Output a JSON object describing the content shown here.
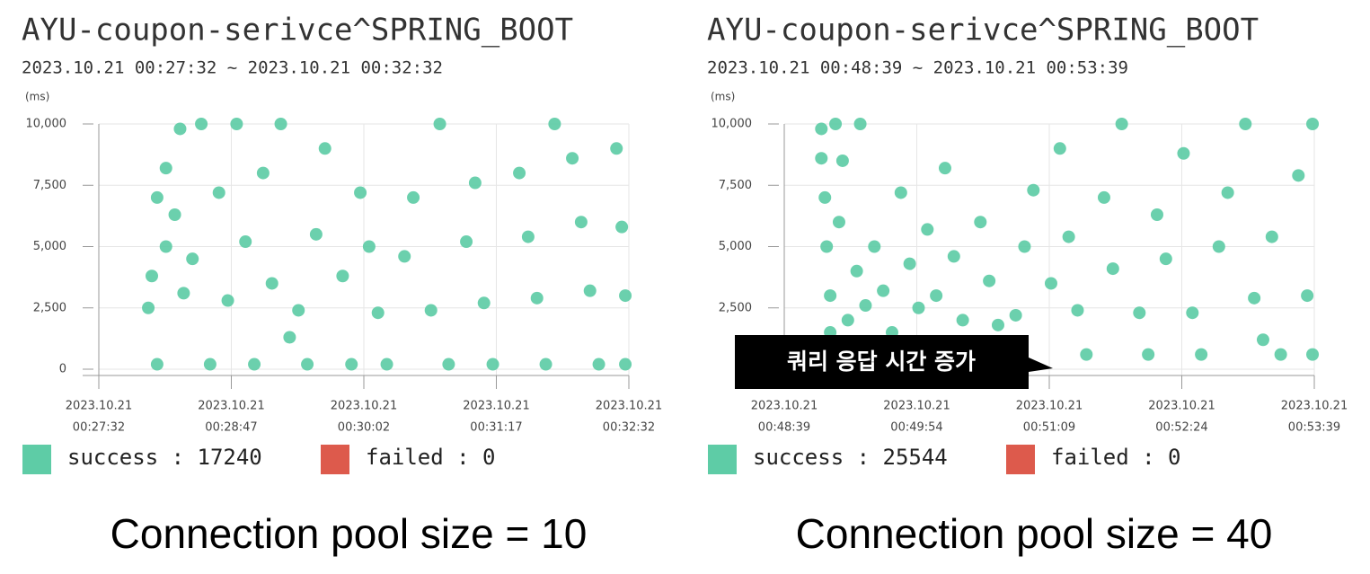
{
  "chart_data": [
    {
      "type": "scatter",
      "title": "AYU-coupon-serivce^SPRING_BOOT",
      "subtitle": "2023.10.21 00:27:32 ~ 2023.10.21 00:32:32",
      "y_label": "(ms)",
      "caption": "Connection pool size = 10",
      "xlim": [
        "2023-10-21T00:27:32",
        "2023-10-21T00:32:32"
      ],
      "xticks": [
        {
          "value": "2023-10-21T00:27:32",
          "label": [
            "2023.10.21",
            "00:27:32"
          ]
        },
        {
          "value": "2023-10-21T00:28:47",
          "label": [
            "2023.10.21",
            "00:28:47"
          ]
        },
        {
          "value": "2023-10-21T00:30:02",
          "label": [
            "2023.10.21",
            "00:30:02"
          ]
        },
        {
          "value": "2023-10-21T00:31:17",
          "label": [
            "2023.10.21",
            "00:31:17"
          ]
        },
        {
          "value": "2023-10-21T00:32:32",
          "label": [
            "2023.10.21",
            "00:32:32"
          ]
        }
      ],
      "ylim": [
        0,
        10000
      ],
      "yticks": [
        0,
        {
          "value": 2500,
          "label": "2,500"
        },
        {
          "value": 5000,
          "label": "5,000"
        },
        {
          "value": 7500,
          "label": "7,500"
        },
        {
          "value": 10000,
          "label": "10,000"
        }
      ],
      "grid": true,
      "x": [
        "2023-10-21T00:28:00",
        "2023-10-21T00:28:02",
        "2023-10-21T00:28:05",
        "2023-10-21T00:28:05",
        "2023-10-21T00:28:10",
        "2023-10-21T00:28:10",
        "2023-10-21T00:28:15",
        "2023-10-21T00:28:18",
        "2023-10-21T00:28:20",
        "2023-10-21T00:28:25",
        "2023-10-21T00:28:30",
        "2023-10-21T00:28:35",
        "2023-10-21T00:28:40",
        "2023-10-21T00:28:45",
        "2023-10-21T00:28:50",
        "2023-10-21T00:28:55",
        "2023-10-21T00:29:00",
        "2023-10-21T00:29:05",
        "2023-10-21T00:29:10",
        "2023-10-21T00:29:15",
        "2023-10-21T00:29:20",
        "2023-10-21T00:29:25",
        "2023-10-21T00:29:30",
        "2023-10-21T00:29:35",
        "2023-10-21T00:29:40",
        "2023-10-21T00:29:50",
        "2023-10-21T00:29:55",
        "2023-10-21T00:30:00",
        "2023-10-21T00:30:05",
        "2023-10-21T00:30:10",
        "2023-10-21T00:30:15",
        "2023-10-21T00:30:25",
        "2023-10-21T00:30:30",
        "2023-10-21T00:30:40",
        "2023-10-21T00:30:45",
        "2023-10-21T00:30:50",
        "2023-10-21T00:31:00",
        "2023-10-21T00:31:05",
        "2023-10-21T00:31:10",
        "2023-10-21T00:31:15",
        "2023-10-21T00:31:30",
        "2023-10-21T00:31:35",
        "2023-10-21T00:31:40",
        "2023-10-21T00:31:45",
        "2023-10-21T00:31:50",
        "2023-10-21T00:32:00",
        "2023-10-21T00:32:05",
        "2023-10-21T00:32:10",
        "2023-10-21T00:32:15",
        "2023-10-21T00:32:25",
        "2023-10-21T00:32:28",
        "2023-10-21T00:32:30",
        "2023-10-21T00:32:30"
      ],
      "series": [
        {
          "name": "success : 17240",
          "color": "#5ecca6",
          "values": [
            2500,
            3800,
            7000,
            200,
            5000,
            8200,
            6300,
            9800,
            3100,
            4500,
            10000,
            200,
            7200,
            2800,
            10000,
            5200,
            200,
            8000,
            3500,
            10000,
            1300,
            2400,
            200,
            5500,
            9000,
            3800,
            200,
            7200,
            5000,
            2300,
            200,
            4600,
            7000,
            2400,
            10000,
            200,
            5200,
            7600,
            2700,
            200,
            8000,
            5400,
            2900,
            200,
            10000,
            8600,
            6000,
            3200,
            200,
            9000,
            5800,
            3000,
            200
          ]
        },
        {
          "name": "failed : 0",
          "color": "#dd5a4c",
          "values": [
            null,
            null,
            null,
            null,
            null,
            null,
            null,
            null,
            null,
            null,
            null,
            null,
            null,
            null,
            null,
            null,
            null,
            null,
            null,
            null,
            null,
            null,
            null,
            null,
            null,
            null,
            null,
            null,
            null,
            null,
            null,
            null,
            null,
            null,
            null,
            null,
            null,
            null,
            null,
            null,
            null,
            null,
            null,
            null,
            null,
            null,
            null,
            null,
            null,
            null,
            null,
            null,
            null
          ]
        }
      ]
    },
    {
      "type": "scatter",
      "title": "AYU-coupon-serivce^SPRING_BOOT",
      "subtitle": "2023.10.21 00:48:39 ~ 2023.10.21 00:53:39",
      "y_label": "(ms)",
      "caption": "Connection pool size = 40",
      "annotation": "쿼리 응답 시간 증가",
      "xlim": [
        "2023-10-21T00:48:39",
        "2023-10-21T00:53:39"
      ],
      "xticks": [
        {
          "value": "2023-10-21T00:48:39",
          "label": [
            "2023.10.21",
            "00:48:39"
          ]
        },
        {
          "value": "2023-10-21T00:49:54",
          "label": [
            "2023.10.21",
            "00:49:54"
          ]
        },
        {
          "value": "2023-10-21T00:51:09",
          "label": [
            "2023.10.21",
            "00:51:09"
          ]
        },
        {
          "value": "2023-10-21T00:52:24",
          "label": [
            "2023.10.21",
            "00:52:24"
          ]
        },
        {
          "value": "2023-10-21T00:53:39",
          "label": [
            "2023.10.21",
            "00:53:39"
          ]
        }
      ],
      "ylim": [
        0,
        10000
      ],
      "yticks": [
        0,
        {
          "value": 2500,
          "label": "2,500"
        },
        {
          "value": 5000,
          "label": "5,000"
        },
        {
          "value": 7500,
          "label": "7,500"
        },
        {
          "value": 10000,
          "label": "10,000"
        }
      ],
      "grid": true,
      "x": [
        "2023-10-21T00:49:00",
        "2023-10-21T00:49:00",
        "2023-10-21T00:49:02",
        "2023-10-21T00:49:03",
        "2023-10-21T00:49:05",
        "2023-10-21T00:49:05",
        "2023-10-21T00:49:08",
        "2023-10-21T00:49:10",
        "2023-10-21T00:49:12",
        "2023-10-21T00:49:15",
        "2023-10-21T00:49:20",
        "2023-10-21T00:49:22",
        "2023-10-21T00:49:25",
        "2023-10-21T00:49:30",
        "2023-10-21T00:49:35",
        "2023-10-21T00:49:40",
        "2023-10-21T00:49:45",
        "2023-10-21T00:49:50",
        "2023-10-21T00:49:55",
        "2023-10-21T00:50:00",
        "2023-10-21T00:50:05",
        "2023-10-21T00:50:10",
        "2023-10-21T00:50:15",
        "2023-10-21T00:50:20",
        "2023-10-21T00:50:30",
        "2023-10-21T00:50:35",
        "2023-10-21T00:50:40",
        "2023-10-21T00:50:50",
        "2023-10-21T00:50:55",
        "2023-10-21T00:51:00",
        "2023-10-21T00:51:10",
        "2023-10-21T00:51:15",
        "2023-10-21T00:51:20",
        "2023-10-21T00:51:25",
        "2023-10-21T00:51:30",
        "2023-10-21T00:51:40",
        "2023-10-21T00:51:45",
        "2023-10-21T00:51:50",
        "2023-10-21T00:52:00",
        "2023-10-21T00:52:05",
        "2023-10-21T00:52:10",
        "2023-10-21T00:52:15",
        "2023-10-21T00:52:25",
        "2023-10-21T00:52:30",
        "2023-10-21T00:52:35",
        "2023-10-21T00:52:45",
        "2023-10-21T00:52:50",
        "2023-10-21T00:53:00",
        "2023-10-21T00:53:05",
        "2023-10-21T00:53:10",
        "2023-10-21T00:53:15",
        "2023-10-21T00:53:20",
        "2023-10-21T00:53:30",
        "2023-10-21T00:53:35",
        "2023-10-21T00:53:38",
        "2023-10-21T00:53:38"
      ],
      "series": [
        {
          "name": "success : 25544",
          "color": "#5ecca6",
          "values": [
            9800,
            8600,
            7000,
            5000,
            3000,
            1500,
            10000,
            6000,
            8500,
            2000,
            4000,
            10000,
            2600,
            5000,
            3200,
            1500,
            7200,
            4300,
            2500,
            5700,
            3000,
            8200,
            4600,
            2000,
            6000,
            3600,
            1800,
            2200,
            5000,
            7300,
            3500,
            9000,
            5400,
            2400,
            600,
            7000,
            4100,
            10000,
            2300,
            600,
            6300,
            4500,
            8800,
            2300,
            600,
            5000,
            7200,
            10000,
            2900,
            1200,
            5400,
            600,
            7900,
            3000,
            600,
            10000
          ]
        },
        {
          "name": "failed : 0",
          "color": "#dd5a4c",
          "values": [
            null,
            null,
            null,
            null,
            null,
            null,
            null,
            null,
            null,
            null,
            null,
            null,
            null,
            null,
            null,
            null,
            null,
            null,
            null,
            null,
            null,
            null,
            null,
            null,
            null,
            null,
            null,
            null,
            null,
            null,
            null,
            null,
            null,
            null,
            null,
            null,
            null,
            null,
            null,
            null,
            null,
            null,
            null,
            null,
            null,
            null,
            null,
            null,
            null,
            null,
            null,
            null,
            null,
            null,
            null,
            null
          ]
        }
      ]
    }
  ]
}
